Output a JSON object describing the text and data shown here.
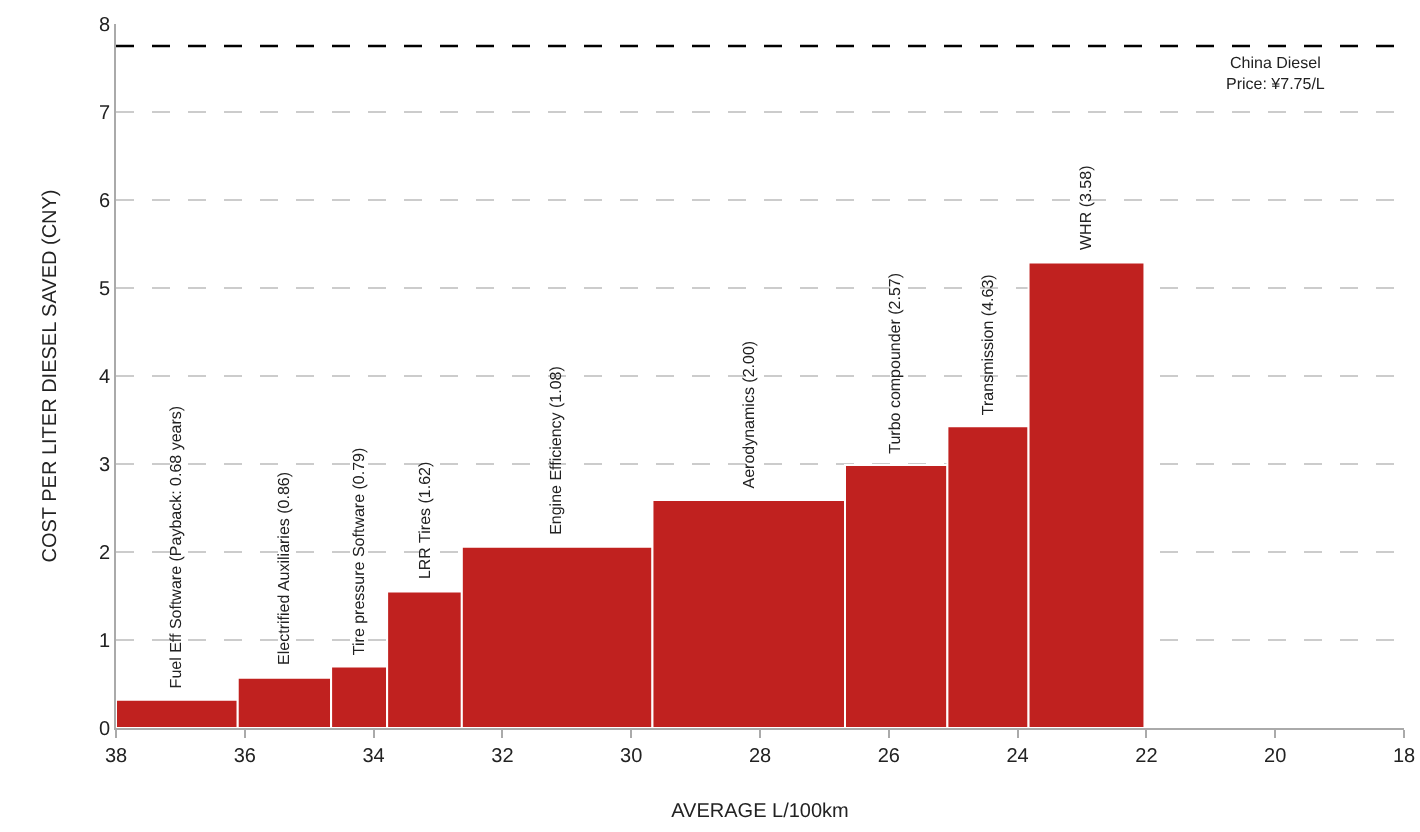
{
  "chart_data": {
    "type": "histogram",
    "xlabel": "AVERAGE L/100km",
    "ylabel": "COST PER LITER DIESEL SAVED (CNY)",
    "bins": [
      38,
      36.11,
      34.66,
      33.79,
      32.63,
      29.67,
      26.68,
      25.09,
      23.83,
      22.03
    ],
    "values": [
      0.32,
      0.57,
      0.7,
      1.55,
      2.06,
      2.59,
      2.99,
      3.43,
      5.29
    ],
    "annotations": [
      {
        "text": "Fuel Eff Software (Payback: 0.68 years)",
        "x": 37.06,
        "y": 0.32
      },
      {
        "text": "Electrified Auxiliaries (0.86)",
        "x": 35.39,
        "y": 0.57
      },
      {
        "text": "Tire pressure Software (0.79)",
        "x": 34.23,
        "y": 0.7
      },
      {
        "text": "LRR Tires (1.62)",
        "x": 33.21,
        "y": 1.55
      },
      {
        "text": "Engine Efficiency (1.08)",
        "x": 31.15,
        "y": 2.06
      },
      {
        "text": "Aerodynamics (2.00)",
        "x": 28.18,
        "y": 2.59
      },
      {
        "text": "Turbo compounder (2.57)",
        "x": 25.89,
        "y": 2.99
      },
      {
        "text": "Transmission (4.63)",
        "x": 24.46,
        "y": 3.43
      },
      {
        "text": "WHR (3.58)",
        "x": 22.93,
        "y": 5.29
      }
    ],
    "color": "#c0211f",
    "xlim": [
      38,
      18
    ],
    "xticks": [
      38,
      36,
      34,
      32,
      30,
      28,
      26,
      24,
      22,
      20,
      18
    ],
    "ylim": [
      0,
      8
    ],
    "yticks": [
      0,
      1,
      2,
      3,
      4,
      5,
      6,
      7,
      8
    ],
    "grid": "y",
    "ref_lines": [
      {
        "axis": "y",
        "value": 7.75,
        "label": "China Diesel\nPrice: ¥7.75/L",
        "color": "#000000",
        "line_style": "dashed"
      }
    ]
  }
}
